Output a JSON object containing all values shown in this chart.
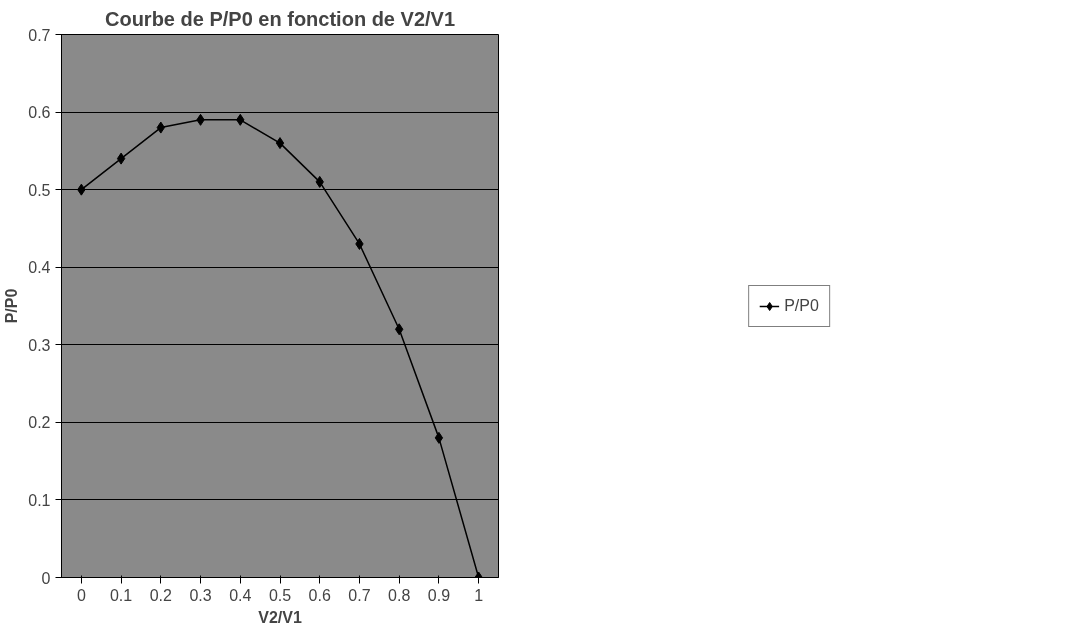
{
  "chart_data": {
    "type": "line",
    "title": "Courbe de P/P0 en fonction de V2/V1",
    "xlabel": "V2/V1",
    "ylabel": "P/P0",
    "categories": [
      "0",
      "0.1",
      "0.2",
      "0.3",
      "0.4",
      "0.5",
      "0.6",
      "0.7",
      "0.8",
      "0.9",
      "1"
    ],
    "series": [
      {
        "name": "P/P0",
        "color": "#000000",
        "values": [
          0.5,
          0.54,
          0.58,
          0.59,
          0.59,
          0.56,
          0.51,
          0.43,
          0.32,
          0.18,
          0
        ]
      }
    ],
    "ylim": [
      0,
      0.7
    ],
    "yticks": [
      0,
      0.1,
      0.2,
      0.3,
      0.4,
      0.5,
      0.6,
      0.7
    ],
    "grid": "y",
    "legend": "right",
    "marker": "diamond",
    "line_style": "solid"
  }
}
